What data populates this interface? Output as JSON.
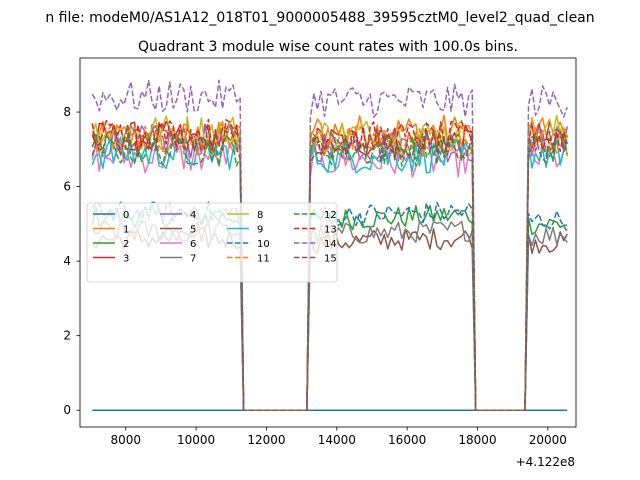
{
  "figure": {
    "suptitle": "n file: modeM0/AS1A12_018T01_9000005488_39595cztM0_level2_quad_clean"
  },
  "chart_data": {
    "type": "line",
    "title": "Quadrant 3 module wise count rates with 100.0s bins.",
    "xlabel": "",
    "ylabel": "",
    "x_offset_label": "+4.122e8",
    "xlim": [
      6700,
      20800
    ],
    "ylim": [
      -0.45,
      9.45
    ],
    "xticks": [
      8000,
      10000,
      12000,
      14000,
      16000,
      18000,
      20000
    ],
    "yticks": [
      0,
      2,
      4,
      6,
      8
    ],
    "grid": false,
    "legend": {
      "placement": "center-left",
      "columns": 4
    },
    "gti_segments": [
      [
        7050,
        11250
      ],
      [
        13200,
        17900
      ],
      [
        19450,
        20550
      ]
    ],
    "off_level": 0,
    "colors": [
      "#1f77b4",
      "#ff7f0e",
      "#2ca02c",
      "#d62728",
      "#9467bd",
      "#8c564b",
      "#e377c2",
      "#7f7f7f",
      "#bcbd22",
      "#17becf"
    ],
    "series": [
      {
        "name": "0",
        "style": "solid",
        "color": "#1f77b4",
        "levels": [
          0,
          0,
          0
        ]
      },
      {
        "name": "1",
        "style": "solid",
        "color": "#ff7f0e",
        "levels": [
          7.3,
          7.5,
          7.4
        ]
      },
      {
        "name": "2",
        "style": "solid",
        "color": "#2ca02c",
        "levels": [
          5.2,
          5.1,
          5.0
        ]
      },
      {
        "name": "3",
        "style": "solid",
        "color": "#d62728",
        "levels": [
          7.3,
          7.2,
          7.3
        ]
      },
      {
        "name": "4",
        "style": "solid",
        "color": "#9467bd",
        "levels": [
          7.2,
          7.1,
          7.2
        ]
      },
      {
        "name": "5",
        "style": "solid",
        "color": "#8c564b",
        "levels": [
          4.6,
          4.5,
          4.5
        ]
      },
      {
        "name": "6",
        "style": "solid",
        "color": "#e377c2",
        "levels": [
          6.8,
          6.7,
          6.8
        ]
      },
      {
        "name": "7",
        "style": "solid",
        "color": "#7f7f7f",
        "levels": [
          4.8,
          4.7,
          4.7
        ]
      },
      {
        "name": "8",
        "style": "solid",
        "color": "#bcbd22",
        "levels": [
          7.5,
          7.4,
          7.5
        ]
      },
      {
        "name": "9",
        "style": "solid",
        "color": "#17becf",
        "levels": [
          6.9,
          6.8,
          6.9
        ]
      },
      {
        "name": "10",
        "style": "dashed",
        "color": "#1f77b4",
        "levels": [
          5.3,
          5.2,
          5.1
        ]
      },
      {
        "name": "11",
        "style": "dashed",
        "color": "#ff7f0e",
        "levels": [
          7.3,
          7.2,
          7.2
        ]
      },
      {
        "name": "12",
        "style": "dashed",
        "color": "#2ca02c",
        "levels": [
          7.0,
          7.0,
          7.1
        ]
      },
      {
        "name": "13",
        "style": "dashed",
        "color": "#d62728",
        "levels": [
          7.4,
          7.3,
          7.3
        ]
      },
      {
        "name": "14",
        "style": "dashed",
        "color": "#9467bd",
        "levels": [
          8.4,
          8.3,
          8.3
        ]
      },
      {
        "name": "15",
        "style": "dashed",
        "color": "#8c564b",
        "levels": [
          7.2,
          7.1,
          7.1
        ]
      }
    ]
  }
}
